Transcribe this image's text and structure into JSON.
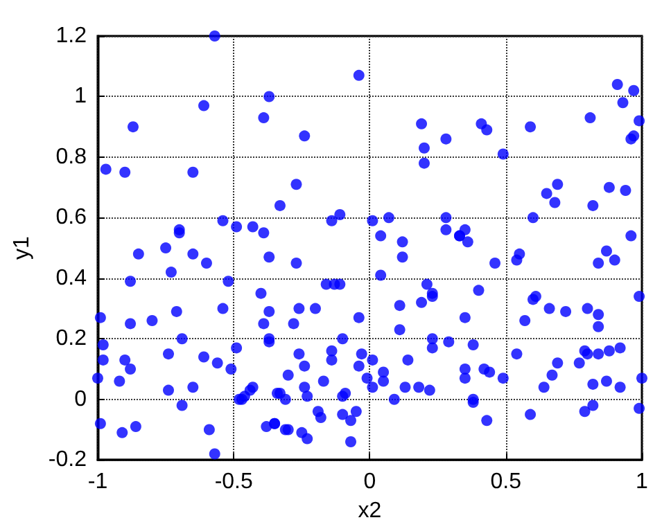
{
  "chart_data": {
    "type": "scatter",
    "xlabel": "x2",
    "ylabel": "y1",
    "xlim": [
      -1,
      1
    ],
    "xticks": [
      -1,
      -0.5,
      0,
      0.5,
      1
    ],
    "ylim": [
      -0.2,
      1.2
    ],
    "yticks": [
      -0.2,
      0,
      0.2,
      0.4,
      0.6,
      0.8,
      1,
      1.2
    ],
    "grid": true,
    "marker": "circle",
    "series": [
      {
        "color": "#0000ff",
        "x": [
          -0.57,
          -0.61,
          -0.37,
          -0.39,
          -0.87,
          -0.97,
          -0.9,
          -0.65,
          -0.33,
          -0.54,
          -0.49,
          -0.43,
          -0.39,
          -0.7,
          -0.7,
          -0.75,
          -0.65,
          -0.85,
          -0.37,
          -0.6,
          -0.73,
          -0.88,
          -0.52,
          -0.4,
          -0.54,
          -0.37,
          -0.71,
          -0.99,
          -0.88,
          -0.8,
          -0.39,
          -0.37,
          -0.37,
          -0.69,
          -0.98,
          -0.98,
          -0.49,
          -0.74,
          -0.61,
          -0.56,
          -0.51,
          -0.9,
          -0.88,
          -1,
          -0.92,
          -0.43,
          -0.44,
          -0.46,
          -0.47,
          -0.48,
          -0.74,
          -0.65,
          -0.69,
          -0.34,
          -0.99,
          -0.86,
          -0.91,
          -0.59,
          -0.38,
          -0.35,
          -0.57,
          -0.04,
          -0.24,
          0.19,
          0.28,
          0.2,
          0.2,
          -0.27,
          -0.14,
          -0.11,
          0.01,
          0.07,
          0.28,
          0.28,
          0.33,
          0.04,
          0.12,
          0.12,
          -0.27,
          0.04,
          -0.16,
          -0.13,
          -0.11,
          0.21,
          0.23,
          0.23,
          0.19,
          0.11,
          -0.2,
          -0.26,
          -0.04,
          -0.28,
          0.11,
          -0.1,
          0.23,
          0.23,
          0.29,
          -0.26,
          -0.14,
          -0.14,
          -0.03,
          0.01,
          0.14,
          -0.04,
          -0.24,
          -0.3,
          -0.01,
          0.01,
          0.05,
          0.05,
          -0.17,
          -0.24,
          -0.23,
          -0.33,
          -0.31,
          -0.1,
          -0.09,
          0.13,
          0.18,
          0.22,
          0.09,
          -0.19,
          -0.18,
          -0.1,
          -0.05,
          -0.07,
          -0.35,
          -0.31,
          -0.3,
          -0.25,
          -0.23,
          -0.07,
          0.91,
          0.97,
          0.93,
          0.81,
          0.99,
          0.96,
          0.97,
          0.41,
          0.43,
          0.59,
          0.49,
          0.69,
          0.65,
          0.68,
          0.88,
          0.94,
          0.82,
          0.6,
          0.96,
          0.35,
          0.33,
          0.36,
          0.55,
          0.54,
          0.87,
          0.84,
          0.9,
          0.46,
          0.99,
          0.4,
          0.61,
          0.6,
          0.66,
          0.72,
          0.8,
          0.84,
          0.84,
          0.35,
          0.57,
          0.38,
          0.79,
          0.8,
          0.84,
          0.88,
          0.92,
          0.54,
          0.69,
          0.77,
          0.35,
          0.35,
          0.42,
          0.44,
          0.49,
          0.67,
          1,
          0.64,
          0.82,
          0.87,
          0.92,
          0.38,
          0.38,
          0.82,
          0.79,
          0.99,
          0.59,
          0.43
        ],
        "values": [
          1.2,
          0.97,
          1,
          0.93,
          0.9,
          0.76,
          0.75,
          0.75,
          0.64,
          0.59,
          0.57,
          0.57,
          0.55,
          0.56,
          0.55,
          0.5,
          0.48,
          0.48,
          0.47,
          0.45,
          0.42,
          0.39,
          0.39,
          0.35,
          0.3,
          0.29,
          0.29,
          0.27,
          0.25,
          0.26,
          0.25,
          0.2,
          0.19,
          0.2,
          0.18,
          0.13,
          0.17,
          0.15,
          0.14,
          0.12,
          0.1,
          0.13,
          0.1,
          0.07,
          0.06,
          0.04,
          0.03,
          0.01,
          0,
          0,
          0.03,
          0.04,
          -0.02,
          0.02,
          -0.08,
          -0.09,
          -0.11,
          -0.1,
          -0.09,
          -0.08,
          -0.18,
          1.07,
          0.87,
          0.91,
          0.86,
          0.83,
          0.78,
          0.71,
          0.59,
          0.61,
          0.59,
          0.6,
          0.6,
          0.56,
          0.54,
          0.54,
          0.52,
          0.47,
          0.45,
          0.41,
          0.38,
          0.38,
          0.38,
          0.38,
          0.35,
          0.34,
          0.32,
          0.31,
          0.3,
          0.3,
          0.27,
          0.25,
          0.23,
          0.2,
          0.2,
          0.17,
          0.19,
          0.15,
          0.16,
          0.13,
          0.15,
          0.13,
          0.13,
          0.11,
          0.11,
          0.08,
          0.07,
          0.04,
          0.09,
          0.06,
          0.06,
          0.04,
          0.01,
          0.02,
          0,
          0.01,
          0.02,
          0.04,
          0.04,
          0.03,
          0,
          -0.04,
          -0.06,
          -0.05,
          -0.04,
          -0.07,
          -0.08,
          -0.1,
          -0.1,
          -0.11,
          -0.13,
          -0.14,
          1.04,
          1.02,
          0.98,
          0.93,
          0.92,
          0.86,
          0.87,
          0.91,
          0.89,
          0.9,
          0.81,
          0.71,
          0.68,
          0.65,
          0.7,
          0.69,
          0.64,
          0.6,
          0.54,
          0.56,
          0.54,
          0.52,
          0.48,
          0.46,
          0.49,
          0.45,
          0.46,
          0.45,
          0.34,
          0.36,
          0.34,
          0.33,
          0.3,
          0.29,
          0.3,
          0.28,
          0.24,
          0.27,
          0.26,
          0.18,
          0.16,
          0.15,
          0.15,
          0.16,
          0.17,
          0.15,
          0.12,
          0.12,
          0.1,
          0.07,
          0.1,
          0.09,
          0.07,
          0.08,
          0.07,
          0.04,
          0.05,
          0.06,
          0.04,
          0,
          -0.01,
          -0.02,
          -0.04,
          -0.03,
          -0.05,
          -0.07
        ]
      }
    ]
  }
}
